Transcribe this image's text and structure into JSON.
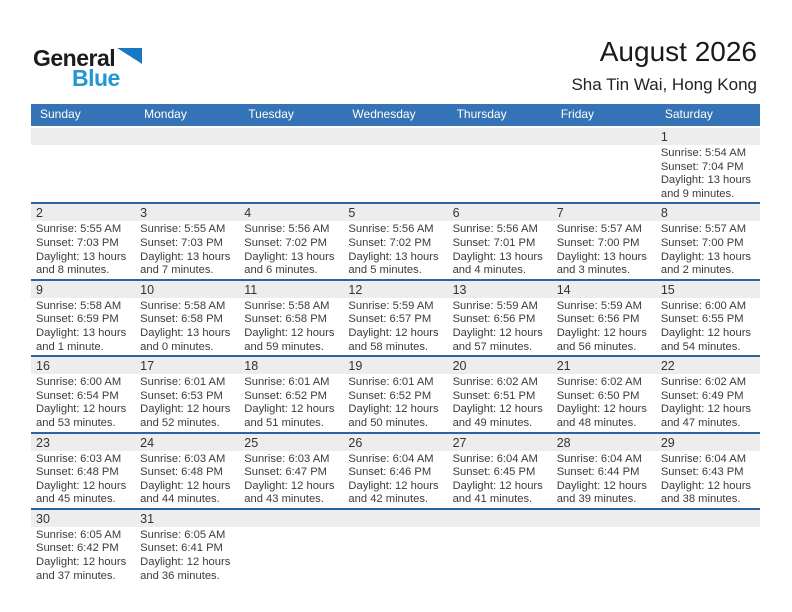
{
  "logo": {
    "text_top": "General",
    "text_bottom": "Blue"
  },
  "header": {
    "title": "August 2026",
    "location": "Sha Tin Wai, Hong Kong"
  },
  "colors": {
    "header_bar": "#3473b5",
    "separator": "#2766a3",
    "day_strip": "#ededed",
    "logo_blue": "#2496d3",
    "logo_triangle": "#1779c4"
  },
  "calendar": {
    "day_headers": [
      "Sunday",
      "Monday",
      "Tuesday",
      "Wednesday",
      "Thursday",
      "Friday",
      "Saturday"
    ],
    "weeks": [
      [
        null,
        null,
        null,
        null,
        null,
        null,
        {
          "day": "1",
          "lines": [
            "Sunrise: 5:54 AM",
            "Sunset: 7:04 PM",
            "Daylight: 13 hours",
            "and 9 minutes."
          ]
        }
      ],
      [
        {
          "day": "2",
          "lines": [
            "Sunrise: 5:55 AM",
            "Sunset: 7:03 PM",
            "Daylight: 13 hours",
            "and 8 minutes."
          ]
        },
        {
          "day": "3",
          "lines": [
            "Sunrise: 5:55 AM",
            "Sunset: 7:03 PM",
            "Daylight: 13 hours",
            "and 7 minutes."
          ]
        },
        {
          "day": "4",
          "lines": [
            "Sunrise: 5:56 AM",
            "Sunset: 7:02 PM",
            "Daylight: 13 hours",
            "and 6 minutes."
          ]
        },
        {
          "day": "5",
          "lines": [
            "Sunrise: 5:56 AM",
            "Sunset: 7:02 PM",
            "Daylight: 13 hours",
            "and 5 minutes."
          ]
        },
        {
          "day": "6",
          "lines": [
            "Sunrise: 5:56 AM",
            "Sunset: 7:01 PM",
            "Daylight: 13 hours",
            "and 4 minutes."
          ]
        },
        {
          "day": "7",
          "lines": [
            "Sunrise: 5:57 AM",
            "Sunset: 7:00 PM",
            "Daylight: 13 hours",
            "and 3 minutes."
          ]
        },
        {
          "day": "8",
          "lines": [
            "Sunrise: 5:57 AM",
            "Sunset: 7:00 PM",
            "Daylight: 13 hours",
            "and 2 minutes."
          ]
        }
      ],
      [
        {
          "day": "9",
          "lines": [
            "Sunrise: 5:58 AM",
            "Sunset: 6:59 PM",
            "Daylight: 13 hours",
            "and 1 minute."
          ]
        },
        {
          "day": "10",
          "lines": [
            "Sunrise: 5:58 AM",
            "Sunset: 6:58 PM",
            "Daylight: 13 hours",
            "and 0 minutes."
          ]
        },
        {
          "day": "11",
          "lines": [
            "Sunrise: 5:58 AM",
            "Sunset: 6:58 PM",
            "Daylight: 12 hours",
            "and 59 minutes."
          ]
        },
        {
          "day": "12",
          "lines": [
            "Sunrise: 5:59 AM",
            "Sunset: 6:57 PM",
            "Daylight: 12 hours",
            "and 58 minutes."
          ]
        },
        {
          "day": "13",
          "lines": [
            "Sunrise: 5:59 AM",
            "Sunset: 6:56 PM",
            "Daylight: 12 hours",
            "and 57 minutes."
          ]
        },
        {
          "day": "14",
          "lines": [
            "Sunrise: 5:59 AM",
            "Sunset: 6:56 PM",
            "Daylight: 12 hours",
            "and 56 minutes."
          ]
        },
        {
          "day": "15",
          "lines": [
            "Sunrise: 6:00 AM",
            "Sunset: 6:55 PM",
            "Daylight: 12 hours",
            "and 54 minutes."
          ]
        }
      ],
      [
        {
          "day": "16",
          "lines": [
            "Sunrise: 6:00 AM",
            "Sunset: 6:54 PM",
            "Daylight: 12 hours",
            "and 53 minutes."
          ]
        },
        {
          "day": "17",
          "lines": [
            "Sunrise: 6:01 AM",
            "Sunset: 6:53 PM",
            "Daylight: 12 hours",
            "and 52 minutes."
          ]
        },
        {
          "day": "18",
          "lines": [
            "Sunrise: 6:01 AM",
            "Sunset: 6:52 PM",
            "Daylight: 12 hours",
            "and 51 minutes."
          ]
        },
        {
          "day": "19",
          "lines": [
            "Sunrise: 6:01 AM",
            "Sunset: 6:52 PM",
            "Daylight: 12 hours",
            "and 50 minutes."
          ]
        },
        {
          "day": "20",
          "lines": [
            "Sunrise: 6:02 AM",
            "Sunset: 6:51 PM",
            "Daylight: 12 hours",
            "and 49 minutes."
          ]
        },
        {
          "day": "21",
          "lines": [
            "Sunrise: 6:02 AM",
            "Sunset: 6:50 PM",
            "Daylight: 12 hours",
            "and 48 minutes."
          ]
        },
        {
          "day": "22",
          "lines": [
            "Sunrise: 6:02 AM",
            "Sunset: 6:49 PM",
            "Daylight: 12 hours",
            "and 47 minutes."
          ]
        }
      ],
      [
        {
          "day": "23",
          "lines": [
            "Sunrise: 6:03 AM",
            "Sunset: 6:48 PM",
            "Daylight: 12 hours",
            "and 45 minutes."
          ]
        },
        {
          "day": "24",
          "lines": [
            "Sunrise: 6:03 AM",
            "Sunset: 6:48 PM",
            "Daylight: 12 hours",
            "and 44 minutes."
          ]
        },
        {
          "day": "25",
          "lines": [
            "Sunrise: 6:03 AM",
            "Sunset: 6:47 PM",
            "Daylight: 12 hours",
            "and 43 minutes."
          ]
        },
        {
          "day": "26",
          "lines": [
            "Sunrise: 6:04 AM",
            "Sunset: 6:46 PM",
            "Daylight: 12 hours",
            "and 42 minutes."
          ]
        },
        {
          "day": "27",
          "lines": [
            "Sunrise: 6:04 AM",
            "Sunset: 6:45 PM",
            "Daylight: 12 hours",
            "and 41 minutes."
          ]
        },
        {
          "day": "28",
          "lines": [
            "Sunrise: 6:04 AM",
            "Sunset: 6:44 PM",
            "Daylight: 12 hours",
            "and 39 minutes."
          ]
        },
        {
          "day": "29",
          "lines": [
            "Sunrise: 6:04 AM",
            "Sunset: 6:43 PM",
            "Daylight: 12 hours",
            "and 38 minutes."
          ]
        }
      ],
      [
        {
          "day": "30",
          "lines": [
            "Sunrise: 6:05 AM",
            "Sunset: 6:42 PM",
            "Daylight: 12 hours",
            "and 37 minutes."
          ]
        },
        {
          "day": "31",
          "lines": [
            "Sunrise: 6:05 AM",
            "Sunset: 6:41 PM",
            "Daylight: 12 hours",
            "and 36 minutes."
          ]
        },
        null,
        null,
        null,
        null,
        null
      ]
    ]
  }
}
